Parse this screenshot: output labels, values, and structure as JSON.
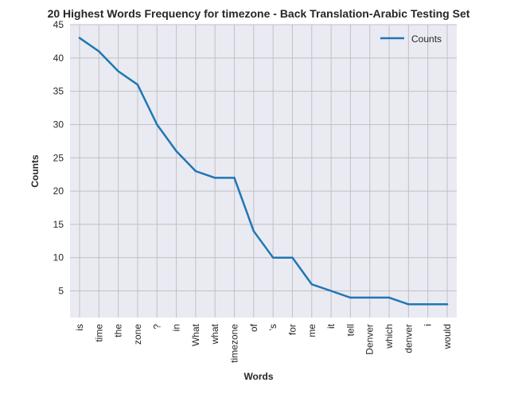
{
  "chart_data": {
    "type": "line",
    "title": "20 Highest Words Frequency for timezone - Back Translation-Arabic Testing Set",
    "xlabel": "Words",
    "ylabel": "Counts",
    "categories": [
      "is",
      "time",
      "the",
      "zone",
      "?",
      "in",
      "What",
      "what",
      "timezone",
      "of",
      "'s",
      "for",
      "me",
      "it",
      "tell",
      "Denver",
      "which",
      "denver",
      "i",
      "would"
    ],
    "series": [
      {
        "name": "Counts",
        "values": [
          43,
          41,
          38,
          36,
          30,
          26,
          23,
          22,
          22,
          14,
          10,
          10,
          6,
          5,
          4,
          4,
          4,
          3,
          3,
          3
        ]
      }
    ],
    "ylim": [
      1,
      45
    ],
    "yticks": [
      5,
      10,
      15,
      20,
      25,
      30,
      35,
      40,
      45
    ],
    "grid": true,
    "legend_position": "top-right",
    "colors": {
      "line": "#1f77b4",
      "plot_background": "#eaeaf2",
      "grid": "#c0c0c6",
      "text": "#262626"
    }
  }
}
